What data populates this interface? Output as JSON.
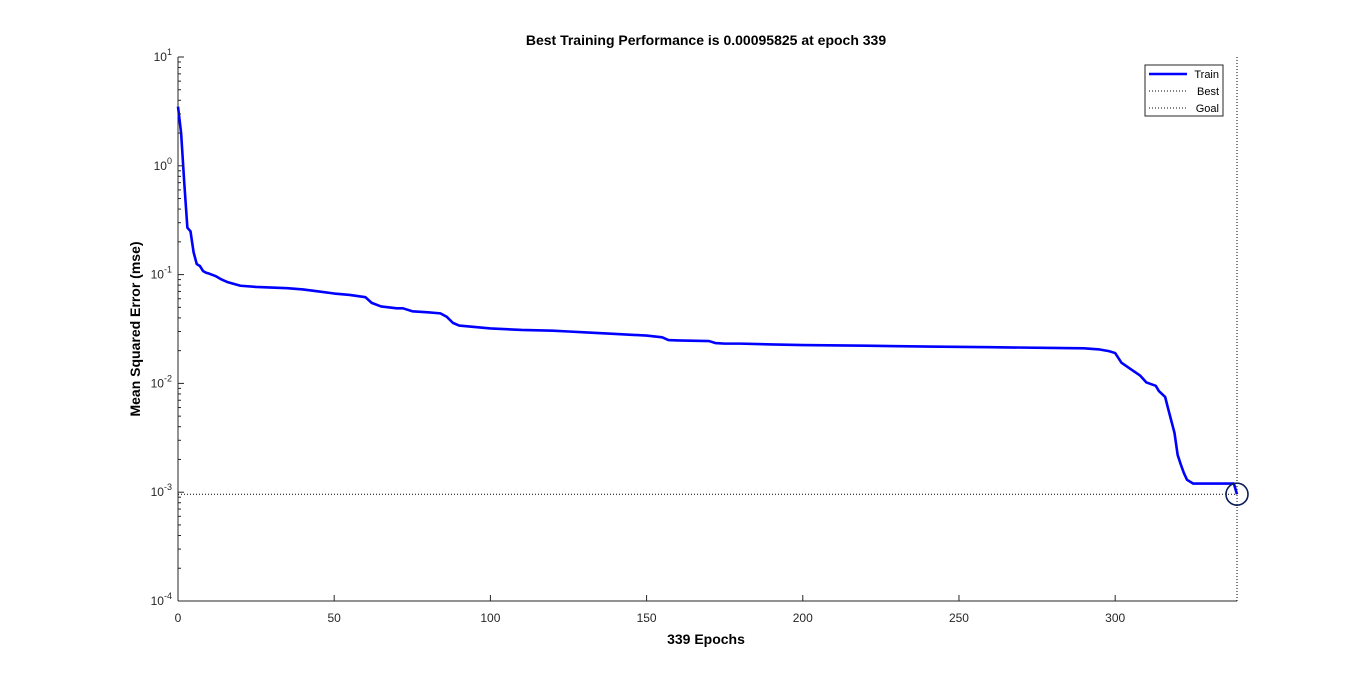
{
  "chart_data": {
    "type": "line",
    "title": "Best Training Performance is 0.00095825 at epoch 339",
    "xlabel": "339 Epochs",
    "ylabel": "Mean Squared Error  (mse)",
    "xlim": [
      0,
      339
    ],
    "ylim": [
      0.0001,
      10
    ],
    "yscale": "log",
    "xticks": [
      "0",
      "50",
      "100",
      "150",
      "200",
      "250",
      "300"
    ],
    "yticks": [
      {
        "base": "10",
        "exp": "1"
      },
      {
        "base": "10",
        "exp": "0"
      },
      {
        "base": "10",
        "exp": "-1"
      },
      {
        "base": "10",
        "exp": "-2"
      },
      {
        "base": "10",
        "exp": "-3"
      },
      {
        "base": "10",
        "exp": "-4"
      }
    ],
    "legend": {
      "position": "top-right",
      "entries": [
        "Train",
        "Best",
        "Goal"
      ]
    },
    "colors": {
      "train": "#0000ff",
      "best": "#000000",
      "goal": "#000000"
    },
    "best": {
      "epoch": 339,
      "value": 0.00095825
    },
    "series": [
      {
        "name": "Train",
        "x": [
          0,
          1,
          2,
          3,
          4,
          5,
          6,
          7,
          8,
          9,
          10,
          12,
          14,
          16,
          18,
          20,
          25,
          30,
          35,
          40,
          45,
          50,
          55,
          60,
          62,
          65,
          70,
          72,
          75,
          80,
          84,
          86,
          88,
          90,
          100,
          110,
          120,
          125,
          130,
          140,
          150,
          155,
          157,
          160,
          170,
          172,
          175,
          180,
          190,
          200,
          220,
          240,
          260,
          280,
          290,
          295,
          298,
          300,
          302,
          305,
          308,
          310,
          313,
          314,
          316,
          317,
          318,
          319,
          320,
          321,
          322,
          323,
          325,
          330,
          335,
          338,
          339
        ],
        "y": [
          3.5,
          2.0,
          0.7,
          0.27,
          0.25,
          0.16,
          0.125,
          0.12,
          0.108,
          0.104,
          0.102,
          0.097,
          0.09,
          0.085,
          0.082,
          0.079,
          0.077,
          0.076,
          0.075,
          0.073,
          0.07,
          0.067,
          0.065,
          0.062,
          0.055,
          0.051,
          0.049,
          0.049,
          0.046,
          0.045,
          0.044,
          0.041,
          0.036,
          0.034,
          0.032,
          0.031,
          0.0305,
          0.03,
          0.0295,
          0.0285,
          0.0275,
          0.0265,
          0.025,
          0.0248,
          0.0245,
          0.0235,
          0.0232,
          0.0232,
          0.0228,
          0.0225,
          0.0222,
          0.0218,
          0.0215,
          0.0212,
          0.021,
          0.0205,
          0.0198,
          0.019,
          0.0155,
          0.0135,
          0.0118,
          0.0102,
          0.0095,
          0.0085,
          0.0075,
          0.0058,
          0.0045,
          0.0035,
          0.0022,
          0.0018,
          0.0015,
          0.0013,
          0.0012,
          0.0012,
          0.0012,
          0.0012,
          0.00095825
        ]
      }
    ]
  }
}
